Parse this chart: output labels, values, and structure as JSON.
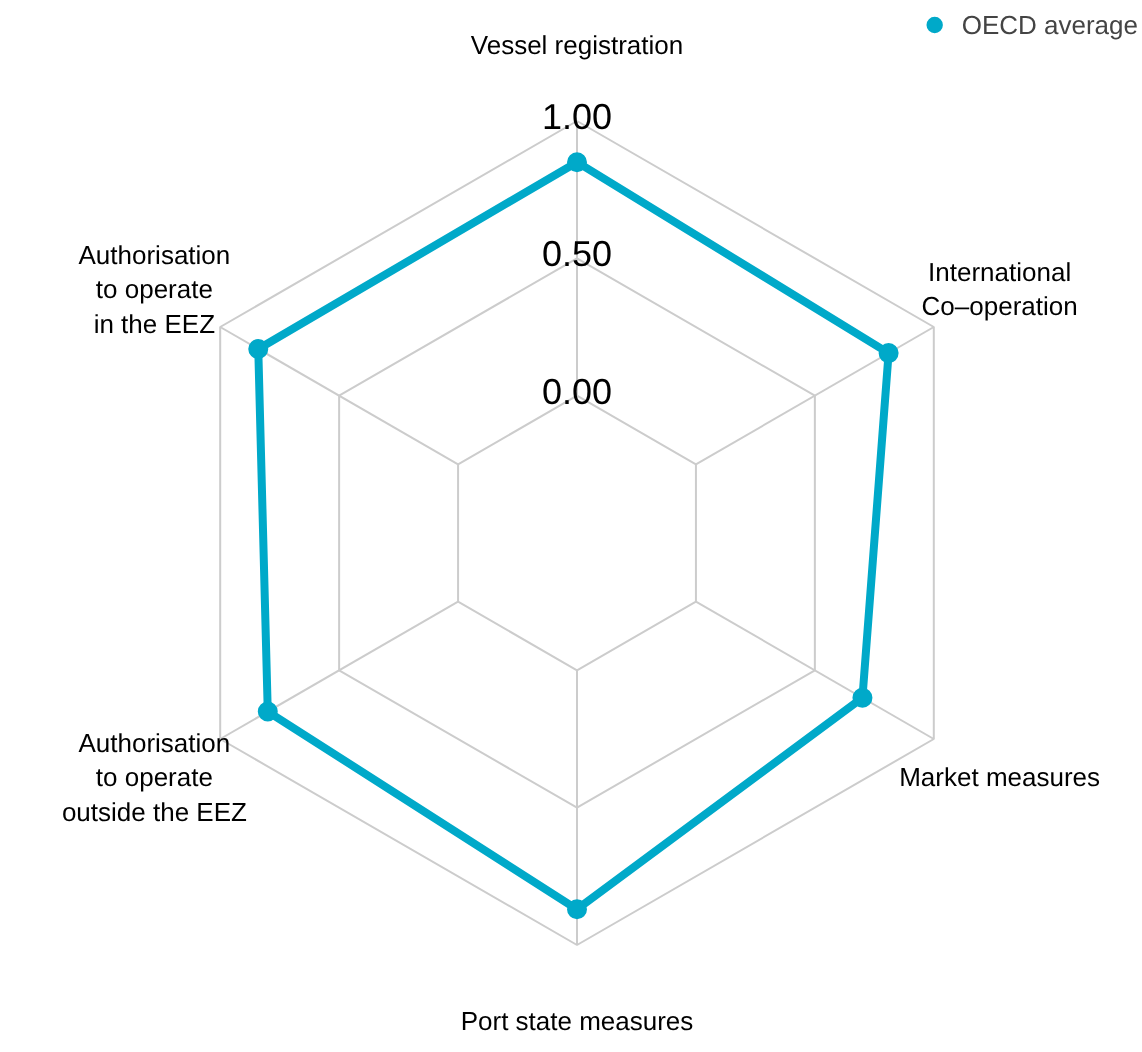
{
  "chart_data": {
    "type": "radar",
    "categories": [
      "Vessel registration",
      "International\nCo–operation",
      "Market measures",
      "Port state measures",
      "Authorisation\nto operate\noutside the EEZ",
      "Authorisation\nto operate\nin the EEZ"
    ],
    "series": [
      {
        "name": "OECD average",
        "color": "#00a9c9",
        "values": [
          0.85,
          0.81,
          0.7,
          0.87,
          0.8,
          0.84
        ]
      }
    ],
    "ylim": [
      -0.5,
      1
    ],
    "yticks": [
      {
        "value": 0,
        "label": "0.00"
      },
      {
        "value": 0.5,
        "label": "0.50"
      },
      {
        "value": 1,
        "label": "1.00"
      }
    ],
    "grid": true,
    "legend": "top right",
    "marker": "circle",
    "line_style": "solid"
  }
}
